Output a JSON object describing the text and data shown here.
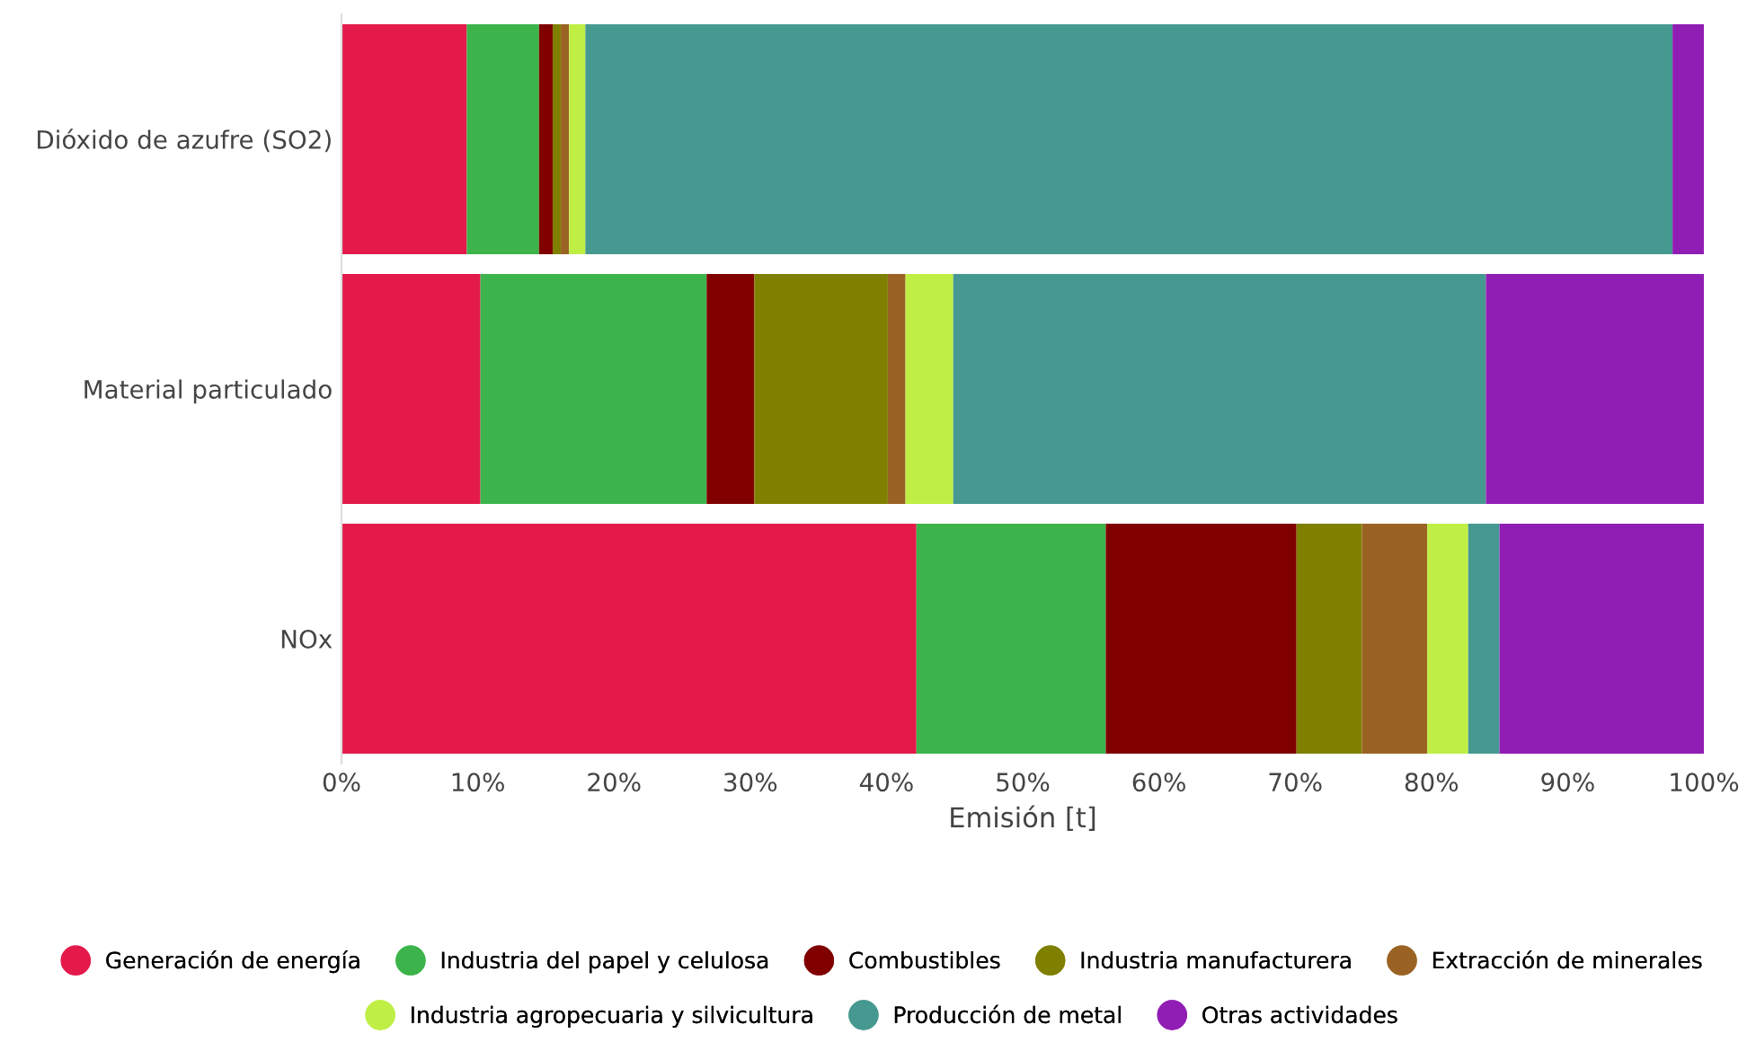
{
  "chart_data": {
    "type": "bar",
    "orientation": "horizontal",
    "stacked": true,
    "xlabel": "Emisión [t]",
    "categories": [
      "Dióxido de azufre (SO2)",
      "Material particulado",
      "NOx"
    ],
    "series": [
      {
        "name": "Generación de energía",
        "color": "#e31a4a",
        "values": [
          9.2,
          10.2,
          42.2
        ]
      },
      {
        "name": "Industria del papel y celulosa",
        "color": "#3cb44b",
        "values": [
          5.3,
          16.6,
          13.9
        ]
      },
      {
        "name": "Combustibles",
        "color": "#800000",
        "values": [
          1.0,
          3.5,
          14.0
        ]
      },
      {
        "name": "Industria manufacturera",
        "color": "#808000",
        "values": [
          0.6,
          9.8,
          4.8
        ]
      },
      {
        "name": "Extracción de minerales",
        "color": "#9a6324",
        "values": [
          0.6,
          1.3,
          4.8
        ]
      },
      {
        "name": "Industria agropecuaria y silvicultura",
        "color": "#bfef45",
        "values": [
          1.2,
          3.5,
          3.0
        ]
      },
      {
        "name": "Producción de metal",
        "color": "#469990",
        "values": [
          79.8,
          39.1,
          2.3
        ]
      },
      {
        "name": "Otras actividades",
        "color": "#911eb4",
        "values": [
          2.3,
          16.0,
          15.0
        ]
      }
    ],
    "xlim": [
      0,
      100
    ],
    "xticks": [
      {
        "value": 0,
        "label": "0%"
      },
      {
        "value": 10,
        "label": "10%"
      },
      {
        "value": 20,
        "label": "20%"
      },
      {
        "value": 30,
        "label": "30%"
      },
      {
        "value": 40,
        "label": "40%"
      },
      {
        "value": 50,
        "label": "50%"
      },
      {
        "value": 60,
        "label": "60%"
      },
      {
        "value": 70,
        "label": "70%"
      },
      {
        "value": 80,
        "label": "80%"
      },
      {
        "value": 90,
        "label": "90%"
      },
      {
        "value": 100,
        "label": "100%"
      }
    ],
    "legend": "bottom",
    "grid": false
  }
}
